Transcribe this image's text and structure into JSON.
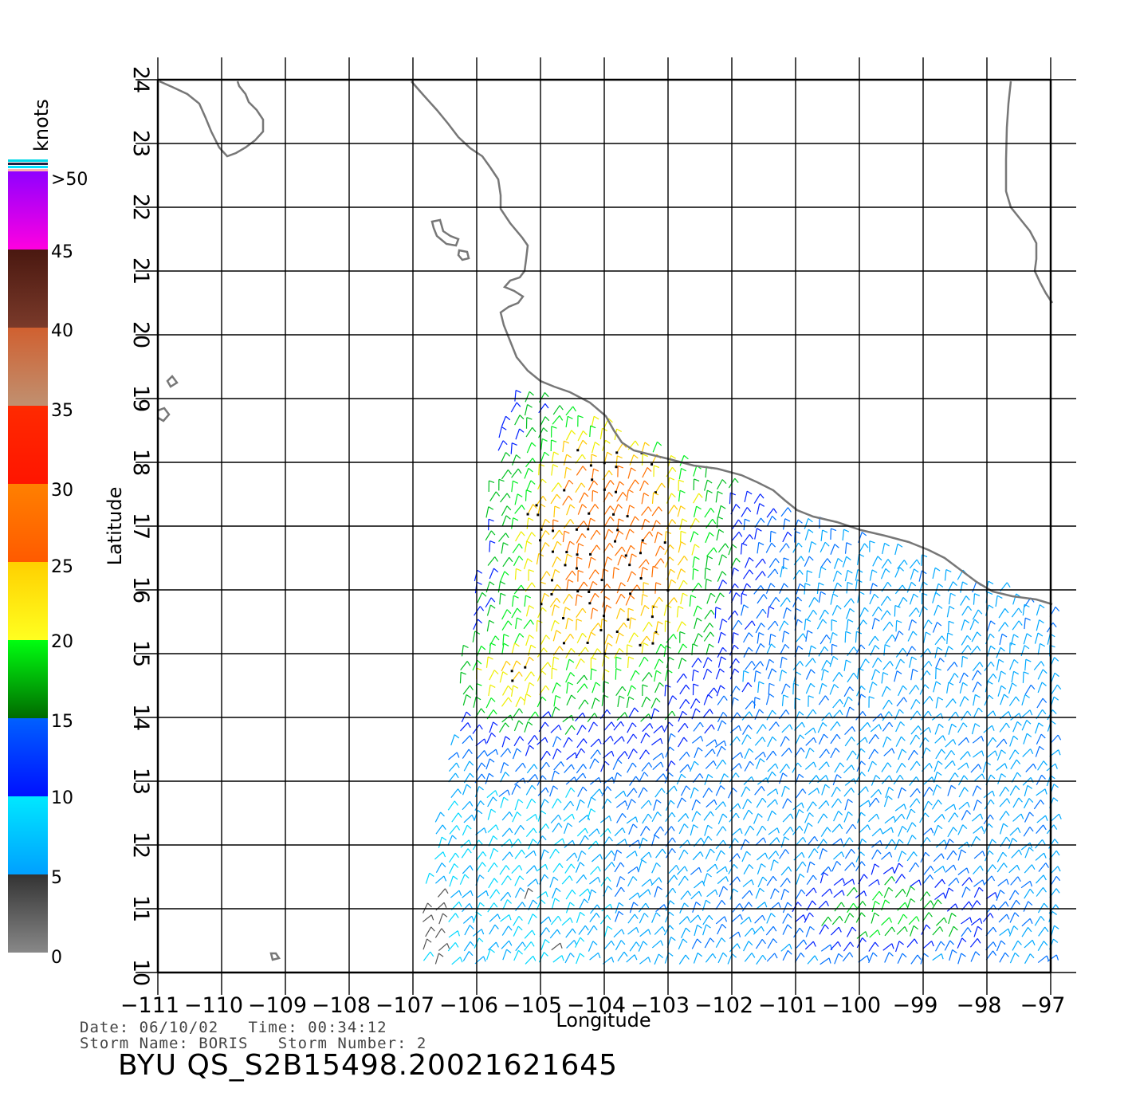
{
  "map": {
    "x_axis_title": "Longitude",
    "y_axis_title": "Latitude",
    "x_ticks": [
      "−111",
      "−110",
      "−109",
      "−108",
      "−107",
      "−106",
      "−105",
      "−104",
      "−103",
      "−102",
      "−101",
      "−100",
      "−99",
      "−98",
      "−97"
    ],
    "y_ticks": [
      "10",
      "11",
      "12",
      "13",
      "14",
      "15",
      "16",
      "17",
      "18",
      "19",
      "20",
      "21",
      "22",
      "23",
      "24"
    ],
    "lon_range": [
      -111,
      -97
    ],
    "lat_range": [
      10,
      24
    ],
    "coastline_color": "#777777",
    "grid_color": "#000000"
  },
  "color_scale": {
    "unit": "knots",
    "labels": [
      ">50",
      "45",
      "40",
      "35",
      "30",
      "25",
      "20",
      "15",
      "10",
      "5",
      "0"
    ],
    "bands": [
      {
        "from": 0,
        "to": 5,
        "top": "#333333",
        "bottom": "#888888"
      },
      {
        "from": 5,
        "to": 10,
        "top": "#00e8ff",
        "bottom": "#00a0ff"
      },
      {
        "from": 10,
        "to": 15,
        "top": "#0060ff",
        "bottom": "#0010ff"
      },
      {
        "from": 15,
        "to": 20,
        "top": "#00ff10",
        "bottom": "#006a00"
      },
      {
        "from": 20,
        "to": 25,
        "top": "#ffd000",
        "bottom": "#ffff20"
      },
      {
        "from": 25,
        "to": 30,
        "top": "#ff8000",
        "bottom": "#ff5a00"
      },
      {
        "from": 30,
        "to": 35,
        "top": "#ff2a00",
        "bottom": "#ff1500"
      },
      {
        "from": 35,
        "to": 40,
        "top": "#d06030",
        "bottom": "#c09070"
      },
      {
        "from": 40,
        "to": 45,
        "top": "#4a1810",
        "bottom": "#7a3a2a"
      },
      {
        "from": 45,
        "to": 50,
        "top": "#9000ff",
        "bottom": "#ff00e0"
      }
    ]
  },
  "info": {
    "line1": "Date: 06/10/02   Time: 00:34:12",
    "line2": "Storm Name: BORIS   Storm Number: 2",
    "product": "BYU QS_S2B15498.20021621645"
  }
}
